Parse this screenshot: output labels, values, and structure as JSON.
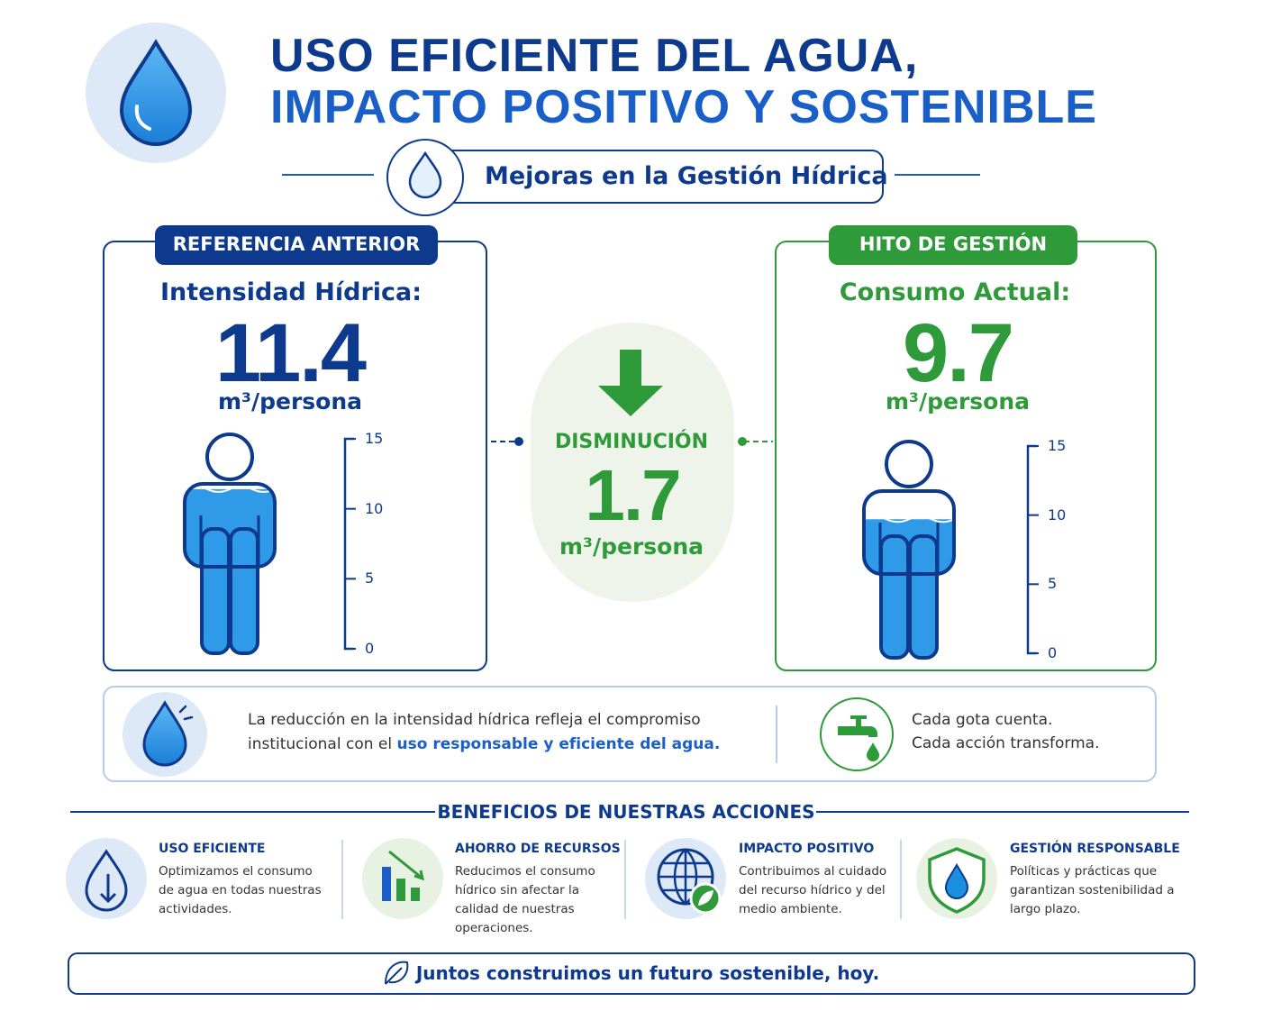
{
  "header": {
    "title_line1": "USO EFICIENTE DEL AGUA,",
    "title_line2": "IMPACTO POSITIVO Y SOSTENIBLE",
    "subtitle": "Mejoras en la Gestión Hídrica"
  },
  "baseline": {
    "badge": "REFERENCIA ANTERIOR",
    "label": "Intensidad Hídrica:",
    "value": 11.4,
    "unit": "m³/persona",
    "scale": {
      "lim": [
        0,
        15
      ],
      "ticks": [
        0,
        5,
        10,
        15
      ]
    }
  },
  "milestone": {
    "badge": "HITO DE GESTIÓN",
    "label": "Consumo Actual:",
    "value": 9.7,
    "unit": "m³/persona",
    "scale": {
      "lim": [
        0,
        15
      ],
      "ticks": [
        0,
        5,
        10,
        15
      ]
    }
  },
  "decrease": {
    "label": "DISMINUCIÓN",
    "value": 1.7,
    "unit": "m³/persona"
  },
  "note": {
    "text": "La reducción en la intensidad hídrica refleja el compromiso institucional con el",
    "highlight": "uso responsable y eficiente del agua.",
    "slogan": [
      "Cada gota cuenta.",
      "Cada acción transforma."
    ]
  },
  "benefits": {
    "title": "BENEFICIOS DE NUESTRAS ACCIONES",
    "items": [
      {
        "title": "USO EFICIENTE",
        "text": "Optimizamos el consumo de agua en todas nuestras actividades."
      },
      {
        "title": "AHORRO DE RECURSOS",
        "text": "Reducimos el consumo hídrico sin afectar la calidad de nuestras operaciones."
      },
      {
        "title": "IMPACTO POSITIVO",
        "text": "Contribuimos al cuidado del recurso hídrico y del medio ambiente."
      },
      {
        "title": "GESTIÓN RESPONSABLE",
        "text": "Políticas y prácticas que garantizan sostenibilidad a largo plazo."
      }
    ]
  },
  "footer": "Juntos construimos un futuro sostenible, hoy."
}
